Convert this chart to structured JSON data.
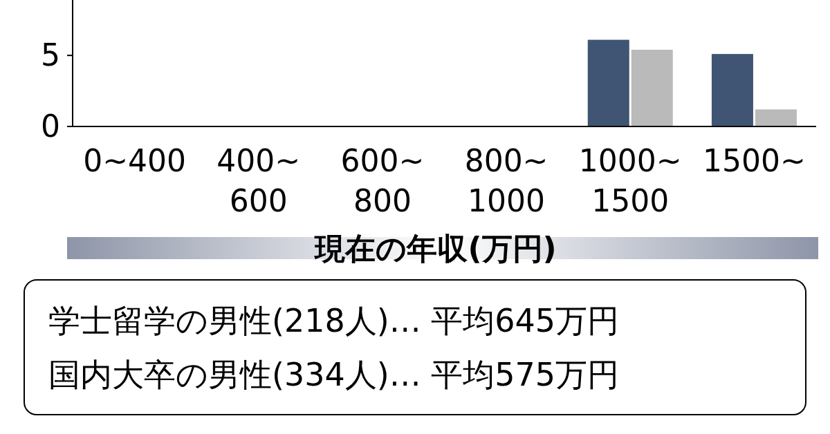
{
  "chart_data": {
    "type": "bar",
    "xlabel": "現在の年収(万円)",
    "categories": [
      "0~400",
      "400~\n600",
      "600~\n800",
      "800~\n1000",
      "1000~\n1500",
      "1500~"
    ],
    "series": [
      {
        "color": "#3f5573",
        "values": [
          null,
          null,
          null,
          null,
          6.1,
          5.1
        ]
      },
      {
        "color": "#bababa",
        "values": [
          null,
          null,
          null,
          null,
          5.4,
          1.2
        ]
      }
    ],
    "ylim": [
      0,
      8.9
    ],
    "yticks": [
      0,
      5
    ],
    "grid": false,
    "annotations": [
      "学士留学の男性(218人)… 平均645万円",
      "国内大卒の男性(334人)… 平均575万円"
    ]
  }
}
